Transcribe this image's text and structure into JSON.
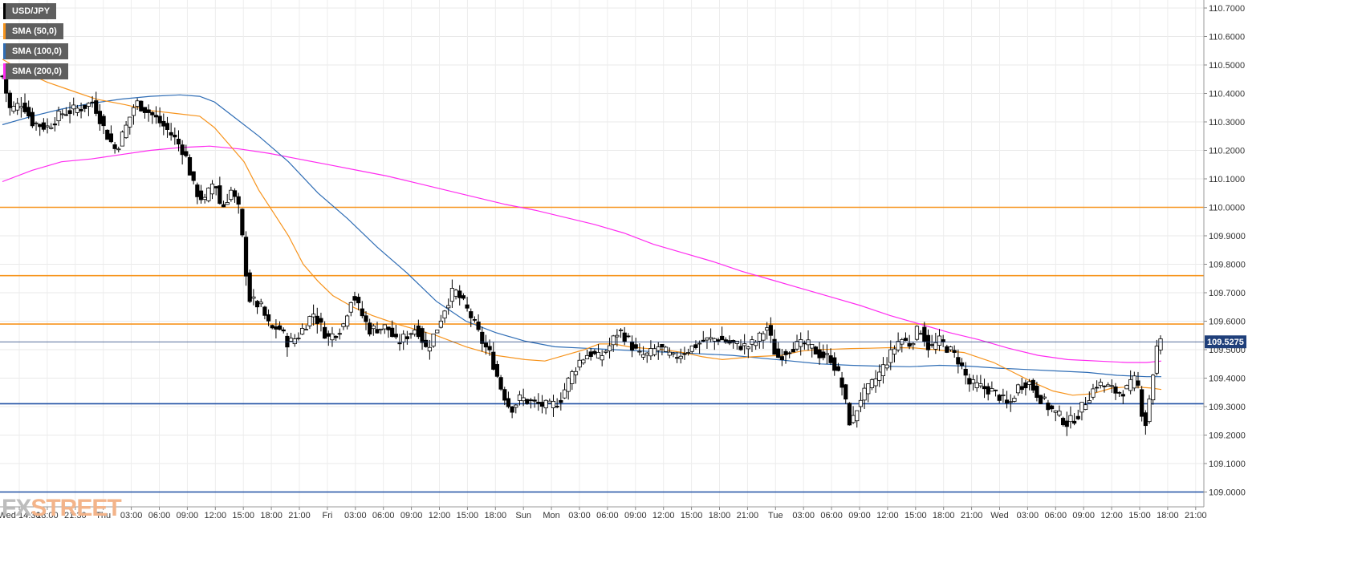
{
  "legend": [
    {
      "label": "USD/JPY",
      "color": "#000000"
    },
    {
      "label": "SMA (50,0)",
      "color": "#f7941d"
    },
    {
      "label": "SMA (100,0)",
      "color": "#2f6db5"
    },
    {
      "label": "SMA (200,0)",
      "color": "#ff2cf0"
    }
  ],
  "logo": {
    "part1": "FX",
    "part2": "STREET"
  },
  "chart_data": {
    "type": "candlestick",
    "symbol": "USD/JPY",
    "current_price": "109.5275",
    "ylim": [
      108.95,
      110.72
    ],
    "y_ticks": [
      "110.7000",
      "110.6000",
      "110.5000",
      "110.4000",
      "110.3000",
      "110.2000",
      "110.1000",
      "110.0000",
      "109.9000",
      "109.8000",
      "109.7000",
      "109.6000",
      "109.5000",
      "109.4000",
      "109.3000",
      "109.2000",
      "109.1000",
      "109.0000"
    ],
    "x_ticks": [
      "Wed 14:30",
      "18:00",
      "21:30",
      "Thu",
      "03:00",
      "06:00",
      "09:00",
      "12:00",
      "15:00",
      "18:00",
      "21:00",
      "Fri",
      "03:00",
      "06:00",
      "09:00",
      "12:00",
      "15:00",
      "18:00",
      "Sun",
      "Mon",
      "03:00",
      "06:00",
      "09:00",
      "12:00",
      "15:00",
      "18:00",
      "21:00",
      "Tue",
      "03:00",
      "06:00",
      "09:00",
      "12:00",
      "15:00",
      "18:00",
      "21:00",
      "Wed",
      "03:00",
      "06:00",
      "09:00",
      "12:00",
      "15:00",
      "18:00",
      "21:00"
    ],
    "horizontal_levels": [
      {
        "value": 110.0,
        "color": "#f7941d"
      },
      {
        "value": 109.76,
        "color": "#f7941d"
      },
      {
        "value": 109.59,
        "color": "#f7941d"
      },
      {
        "value": 109.31,
        "color": "#1f4fa3"
      },
      {
        "value": 109.0,
        "color": "#1f4fa3"
      }
    ],
    "sma50": [
      [
        0,
        110.52
      ],
      [
        20,
        110.48
      ],
      [
        45,
        110.44
      ],
      [
        70,
        110.41
      ],
      [
        95,
        110.38
      ],
      [
        125,
        110.36
      ],
      [
        150,
        110.34
      ],
      [
        175,
        110.33
      ],
      [
        200,
        110.32
      ],
      [
        215,
        110.28
      ],
      [
        230,
        110.22
      ],
      [
        245,
        110.16
      ],
      [
        260,
        110.06
      ],
      [
        275,
        109.98
      ],
      [
        290,
        109.9
      ],
      [
        305,
        109.8
      ],
      [
        320,
        109.74
      ],
      [
        335,
        109.69
      ],
      [
        355,
        109.65
      ],
      [
        375,
        109.62
      ],
      [
        400,
        109.59
      ],
      [
        420,
        109.57
      ],
      [
        440,
        109.55
      ],
      [
        470,
        109.51
      ],
      [
        500,
        109.48
      ],
      [
        530,
        109.465
      ],
      [
        550,
        109.46
      ],
      [
        570,
        109.48
      ],
      [
        590,
        109.5
      ],
      [
        605,
        109.52
      ],
      [
        620,
        109.52
      ],
      [
        635,
        109.51
      ],
      [
        650,
        109.505
      ],
      [
        670,
        109.5
      ],
      [
        690,
        109.49
      ],
      [
        710,
        109.475
      ],
      [
        730,
        109.465
      ],
      [
        760,
        109.475
      ],
      [
        790,
        109.48
      ],
      [
        810,
        109.495
      ],
      [
        825,
        109.5
      ],
      [
        845,
        109.502
      ],
      [
        860,
        109.504
      ],
      [
        880,
        109.505
      ],
      [
        900,
        109.507
      ],
      [
        925,
        109.506
      ],
      [
        945,
        109.5
      ],
      [
        975,
        109.49
      ],
      [
        1005,
        109.455
      ],
      [
        1025,
        109.42
      ],
      [
        1045,
        109.385
      ],
      [
        1065,
        109.355
      ],
      [
        1085,
        109.34
      ],
      [
        1105,
        109.345
      ],
      [
        1125,
        109.365
      ],
      [
        1145,
        109.37
      ],
      [
        1165,
        109.365
      ],
      [
        1175,
        109.36
      ]
    ],
    "sma100": [
      [
        0,
        110.29
      ],
      [
        30,
        110.32
      ],
      [
        60,
        110.345
      ],
      [
        90,
        110.365
      ],
      [
        120,
        110.38
      ],
      [
        150,
        110.39
      ],
      [
        180,
        110.395
      ],
      [
        200,
        110.39
      ],
      [
        215,
        110.37
      ],
      [
        230,
        110.33
      ],
      [
        260,
        110.25
      ],
      [
        290,
        110.16
      ],
      [
        320,
        110.05
      ],
      [
        350,
        109.96
      ],
      [
        380,
        109.86
      ],
      [
        410,
        109.77
      ],
      [
        440,
        109.67
      ],
      [
        470,
        109.6
      ],
      [
        500,
        109.56
      ],
      [
        530,
        109.53
      ],
      [
        560,
        109.51
      ],
      [
        590,
        109.505
      ],
      [
        620,
        109.5
      ],
      [
        650,
        109.495
      ],
      [
        680,
        109.49
      ],
      [
        710,
        109.485
      ],
      [
        740,
        109.48
      ],
      [
        770,
        109.47
      ],
      [
        800,
        109.46
      ],
      [
        830,
        109.45
      ],
      [
        860,
        109.445
      ],
      [
        890,
        109.442
      ],
      [
        920,
        109.44
      ],
      [
        950,
        109.445
      ],
      [
        980,
        109.442
      ],
      [
        1010,
        109.435
      ],
      [
        1040,
        109.43
      ],
      [
        1070,
        109.425
      ],
      [
        1100,
        109.42
      ],
      [
        1130,
        109.41
      ],
      [
        1160,
        109.405
      ],
      [
        1175,
        109.405
      ]
    ],
    "sma200": [
      [
        0,
        110.09
      ],
      [
        30,
        110.13
      ],
      [
        60,
        110.16
      ],
      [
        90,
        110.17
      ],
      [
        120,
        110.185
      ],
      [
        150,
        110.2
      ],
      [
        180,
        110.21
      ],
      [
        210,
        110.215
      ],
      [
        240,
        110.205
      ],
      [
        270,
        110.19
      ],
      [
        300,
        110.17
      ],
      [
        330,
        110.15
      ],
      [
        360,
        110.13
      ],
      [
        390,
        110.11
      ],
      [
        420,
        110.085
      ],
      [
        450,
        110.06
      ],
      [
        480,
        110.035
      ],
      [
        510,
        110.01
      ],
      [
        540,
        109.99
      ],
      [
        570,
        109.965
      ],
      [
        600,
        109.94
      ],
      [
        630,
        109.91
      ],
      [
        660,
        109.87
      ],
      [
        690,
        109.84
      ],
      [
        720,
        109.81
      ],
      [
        750,
        109.775
      ],
      [
        780,
        109.745
      ],
      [
        810,
        109.715
      ],
      [
        840,
        109.685
      ],
      [
        870,
        109.655
      ],
      [
        900,
        109.62
      ],
      [
        930,
        109.59
      ],
      [
        960,
        109.56
      ],
      [
        990,
        109.535
      ],
      [
        1020,
        109.505
      ],
      [
        1050,
        109.48
      ],
      [
        1080,
        109.465
      ],
      [
        1110,
        109.46
      ],
      [
        1140,
        109.455
      ],
      [
        1160,
        109.455
      ],
      [
        1175,
        109.46
      ]
    ],
    "price_anchors": [
      [
        0,
        110.46
      ],
      [
        8,
        110.34
      ],
      [
        20,
        110.37
      ],
      [
        30,
        110.3
      ],
      [
        45,
        110.28
      ],
      [
        60,
        110.33
      ],
      [
        80,
        110.35
      ],
      [
        92,
        110.37
      ],
      [
        105,
        110.26
      ],
      [
        115,
        110.2
      ],
      [
        125,
        110.28
      ],
      [
        135,
        110.37
      ],
      [
        150,
        110.33
      ],
      [
        165,
        110.28
      ],
      [
        175,
        110.24
      ],
      [
        185,
        110.19
      ],
      [
        195,
        110.06
      ],
      [
        205,
        110.02
      ],
      [
        215,
        110.1
      ],
      [
        222,
        109.99
      ],
      [
        232,
        110.06
      ],
      [
        240,
        109.99
      ],
      [
        250,
        109.68
      ],
      [
        262,
        109.65
      ],
      [
        272,
        109.57
      ],
      [
        280,
        109.58
      ],
      [
        290,
        109.52
      ],
      [
        300,
        109.55
      ],
      [
        315,
        109.63
      ],
      [
        330,
        109.54
      ],
      [
        345,
        109.58
      ],
      [
        355,
        109.7
      ],
      [
        362,
        109.64
      ],
      [
        372,
        109.57
      ],
      [
        390,
        109.58
      ],
      [
        400,
        109.52
      ],
      [
        410,
        109.55
      ],
      [
        420,
        109.58
      ],
      [
        430,
        109.5
      ],
      [
        440,
        109.57
      ],
      [
        450,
        109.66
      ],
      [
        458,
        109.71
      ],
      [
        466,
        109.67
      ],
      [
        476,
        109.61
      ],
      [
        486,
        109.53
      ],
      [
        495,
        109.48
      ],
      [
        505,
        109.37
      ],
      [
        515,
        109.29
      ],
      [
        525,
        109.33
      ],
      [
        540,
        109.31
      ],
      [
        555,
        109.3
      ],
      [
        565,
        109.32
      ],
      [
        575,
        109.4
      ],
      [
        585,
        109.46
      ],
      [
        595,
        109.49
      ],
      [
        605,
        109.47
      ],
      [
        615,
        109.51
      ],
      [
        625,
        109.57
      ],
      [
        635,
        109.53
      ],
      [
        645,
        109.48
      ],
      [
        655,
        109.48
      ],
      [
        665,
        109.51
      ],
      [
        680,
        109.47
      ],
      [
        695,
        109.5
      ],
      [
        710,
        109.53
      ],
      [
        725,
        109.54
      ],
      [
        740,
        109.52
      ],
      [
        755,
        109.51
      ],
      [
        765,
        109.53
      ],
      [
        775,
        109.58
      ],
      [
        785,
        109.47
      ],
      [
        800,
        109.51
      ],
      [
        815,
        109.52
      ],
      [
        830,
        109.48
      ],
      [
        840,
        109.47
      ],
      [
        850,
        109.39
      ],
      [
        860,
        109.23
      ],
      [
        870,
        109.33
      ],
      [
        880,
        109.37
      ],
      [
        890,
        109.42
      ],
      [
        900,
        109.48
      ],
      [
        910,
        109.54
      ],
      [
        920,
        109.52
      ],
      [
        930,
        109.58
      ],
      [
        940,
        109.5
      ],
      [
        950,
        109.53
      ],
      [
        960,
        109.5
      ],
      [
        970,
        109.46
      ],
      [
        980,
        109.38
      ],
      [
        990,
        109.37
      ],
      [
        1000,
        109.36
      ],
      [
        1010,
        109.34
      ],
      [
        1020,
        109.3
      ],
      [
        1030,
        109.37
      ],
      [
        1040,
        109.39
      ],
      [
        1050,
        109.34
      ],
      [
        1060,
        109.3
      ],
      [
        1070,
        109.27
      ],
      [
        1080,
        109.24
      ],
      [
        1090,
        109.27
      ],
      [
        1100,
        109.33
      ],
      [
        1110,
        109.38
      ],
      [
        1120,
        109.37
      ],
      [
        1130,
        109.35
      ],
      [
        1140,
        109.36
      ],
      [
        1150,
        109.4
      ],
      [
        1158,
        109.22
      ],
      [
        1165,
        109.38
      ],
      [
        1171,
        109.52
      ],
      [
        1175,
        109.5275
      ]
    ]
  }
}
